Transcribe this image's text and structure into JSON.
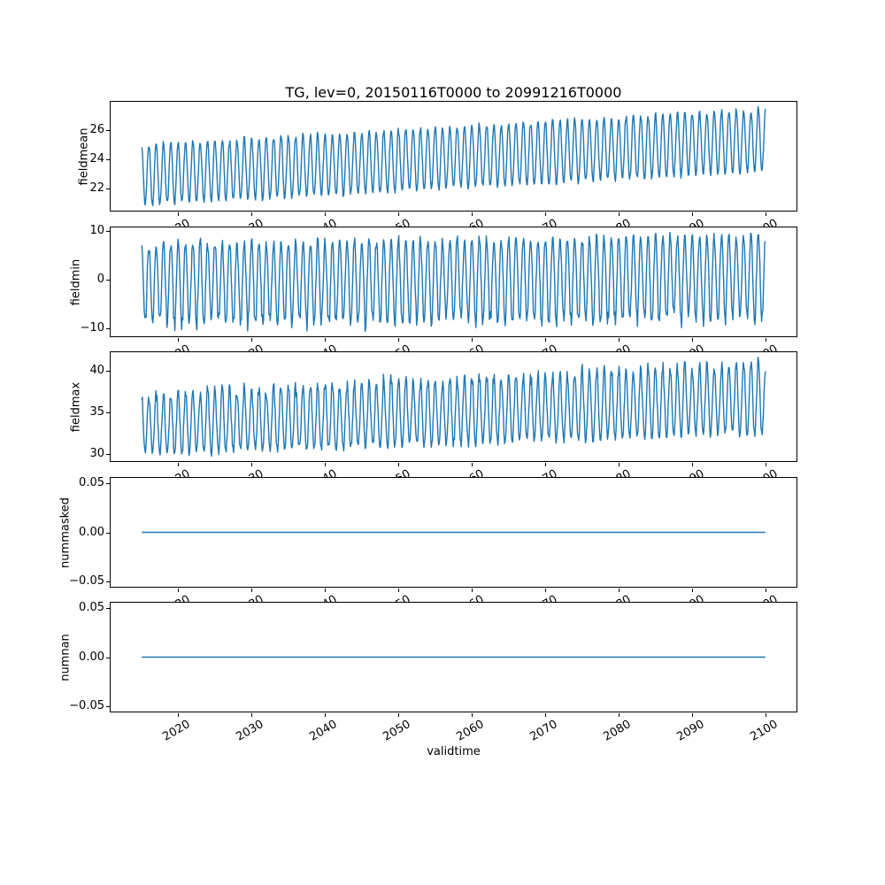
{
  "figure": {
    "background": "#ffffff"
  },
  "chart_data": {
    "type": "line",
    "title": "TG, lev=0, 20150116T0000 to 20991216T0000",
    "xlabel": "validtime",
    "x_start": 2015.042,
    "x_end": 2099.958,
    "points_per_year": 12,
    "x_ticks": [
      2020,
      2030,
      2040,
      2050,
      2060,
      2070,
      2080,
      2090,
      2100
    ],
    "x_tick_labels": [
      "2020",
      "2030",
      "2040",
      "2050",
      "2060",
      "2070",
      "2080",
      "2090",
      "2100"
    ],
    "line_color": "#1f77b4",
    "prng_seed": 20150116,
    "legend": "none",
    "grid": false,
    "subplots": [
      {
        "ylabel": "fieldmean",
        "yticks": [
          22,
          24,
          26
        ],
        "ytick_labels": [
          "22",
          "24",
          "26"
        ],
        "pattern": "annual cycle peaking near year start, rising trend over century",
        "gen": {
          "kind": "seasonal",
          "base": 22.9,
          "trend": 2.4,
          "amp": 1.95,
          "amp_trend": 0.1,
          "noise": 0.15,
          "peak_extra": 0.25,
          "trough_extra": 0.2
        },
        "approx_min": 20.7,
        "approx_max": 27.4
      },
      {
        "ylabel": "fieldmin",
        "yticks": [
          -10,
          0,
          10
        ],
        "ytick_labels": [
          "−10",
          "0",
          "10"
        ],
        "pattern": "annual cycle with occasional deep winter spikes to about -11",
        "gen": {
          "kind": "seasonal",
          "base": -0.6,
          "trend": 1.4,
          "amp": 7.2,
          "amp_trend": 0.4,
          "noise": 0.9,
          "peak_extra": 1.2,
          "trough_extra": 2.6
        },
        "approx_min": -11.3,
        "approx_max": 9.9
      },
      {
        "ylabel": "fieldmax",
        "yticks": [
          30,
          35,
          40
        ],
        "ytick_labels": [
          "30",
          "35",
          "40"
        ],
        "pattern": "annual cycle 30-37 early rising to 32-41.5 late century",
        "gen": {
          "kind": "seasonal",
          "base": 33.3,
          "trend": 3.2,
          "amp": 3.2,
          "amp_trend": 0.6,
          "noise": 0.5,
          "peak_extra": 1.3,
          "trough_extra": 0.3
        },
        "approx_min": 29.6,
        "approx_max": 41.7
      },
      {
        "ylabel": "nummasked",
        "yticks": [
          -0.05,
          0.0,
          0.05
        ],
        "ytick_labels": [
          "−0.05",
          "0.00",
          "0.05"
        ],
        "pattern": "constant zero",
        "gen": {
          "kind": "constant",
          "value": 0
        },
        "approx_min": 0,
        "approx_max": 0
      },
      {
        "ylabel": "numnan",
        "yticks": [
          -0.05,
          0.0,
          0.05
        ],
        "ytick_labels": [
          "−0.05",
          "0.00",
          "0.05"
        ],
        "pattern": "constant zero",
        "gen": {
          "kind": "constant",
          "value": 0
        },
        "approx_min": 0,
        "approx_max": 0
      }
    ]
  }
}
